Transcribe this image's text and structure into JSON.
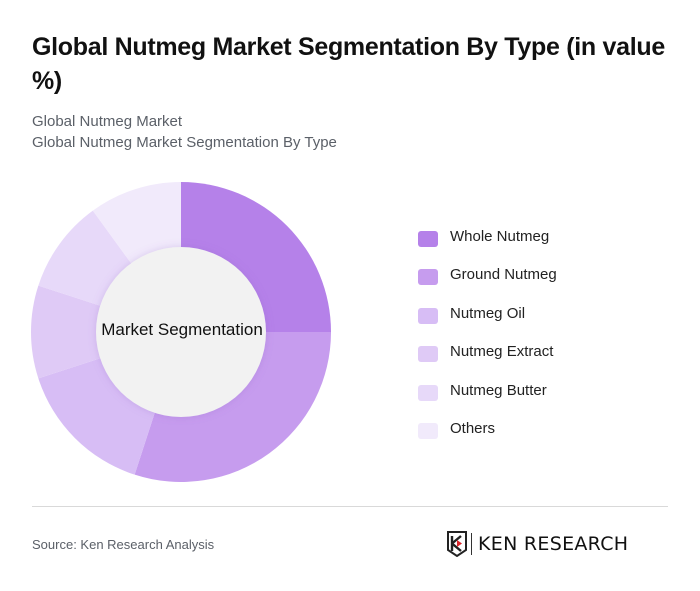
{
  "header": {
    "title": "Global Nutmeg Market Segmentation By Type (in value %)",
    "subtitle_1": "Global Nutmeg Market",
    "subtitle_2": "Global Nutmeg Market Segmentation By Type"
  },
  "chart": {
    "center_label": "Market Segmentation"
  },
  "legend": {
    "items": [
      {
        "label": "Whole Nutmeg",
        "color": "#b581e9"
      },
      {
        "label": "Ground Nutmeg",
        "color": "#c69cee"
      },
      {
        "label": "Nutmeg Oil",
        "color": "#d7bdf5"
      },
      {
        "label": "Nutmeg Extract",
        "color": "#dfcaf6"
      },
      {
        "label": "Nutmeg Butter",
        "color": "#e7d9f9"
      },
      {
        "label": "Others",
        "color": "#f1eafb"
      }
    ]
  },
  "footer": {
    "source": "Source: Ken Research Analysis",
    "logo_text": "KEN RESEARCH"
  },
  "chart_data": {
    "type": "pie",
    "subtype": "donut",
    "title": "Global Nutmeg Market Segmentation By Type (in value %)",
    "center_label": "Market Segmentation",
    "categories": [
      "Whole Nutmeg",
      "Ground Nutmeg",
      "Nutmeg Oil",
      "Nutmeg Extract",
      "Nutmeg Butter",
      "Others"
    ],
    "values": [
      25,
      30,
      15,
      10,
      10,
      10
    ],
    "colors": [
      "#b581e9",
      "#c69cee",
      "#d7bdf5",
      "#dfcaf6",
      "#e7d9f9",
      "#f1eafb"
    ],
    "legend_position": "right",
    "start_angle_deg": 0,
    "direction": "clockwise"
  }
}
